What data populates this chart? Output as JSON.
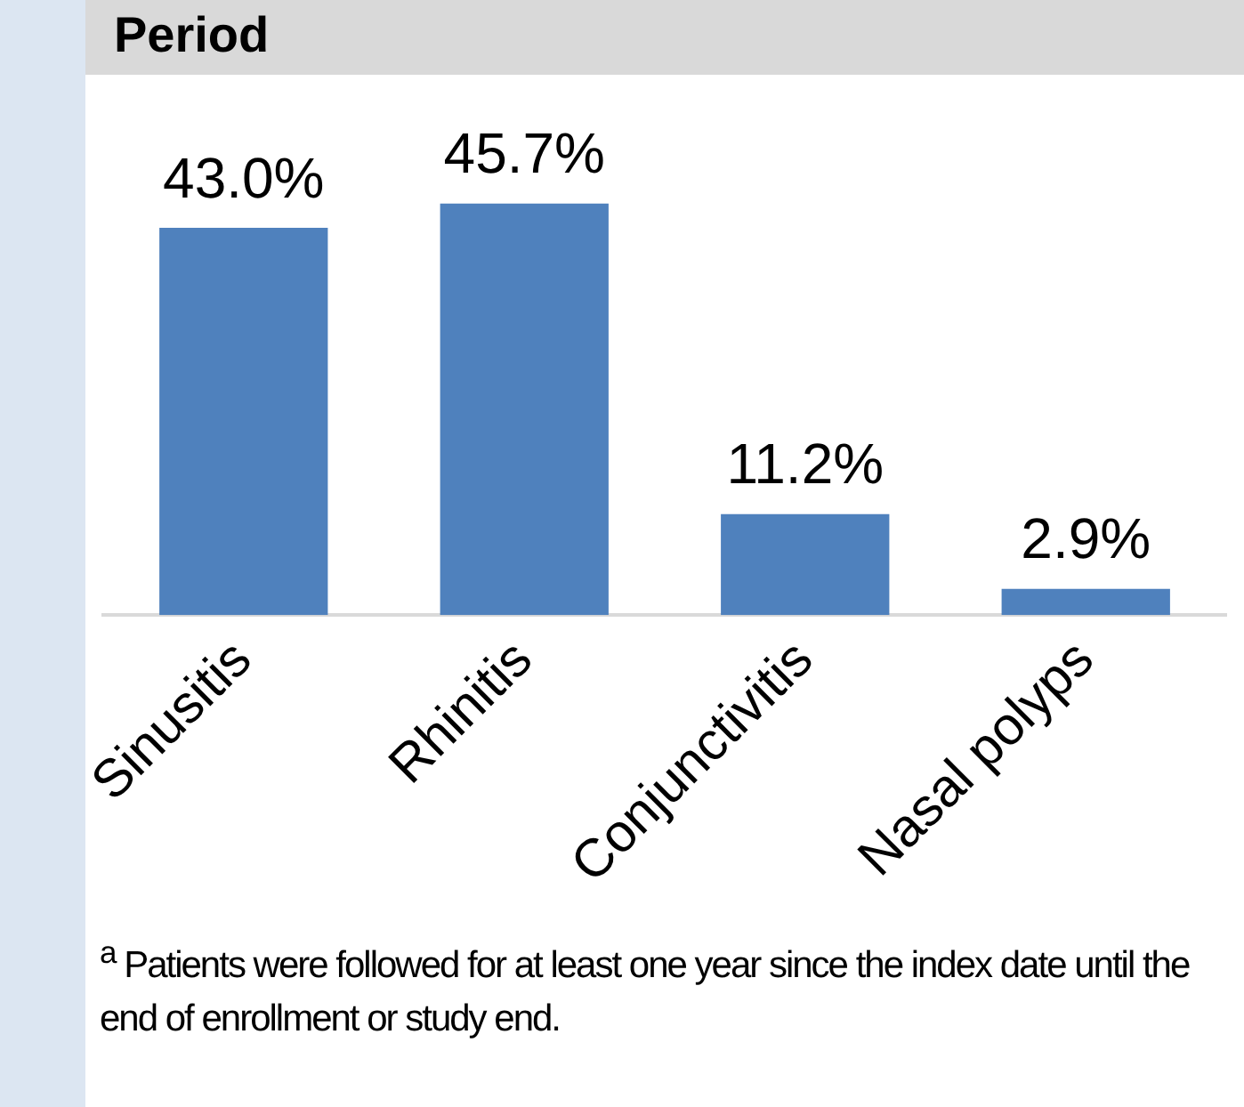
{
  "chart_data": {
    "type": "bar",
    "title": "Period",
    "categories": [
      "Sinusitis",
      "Rhinitis",
      "Conjunctivitis",
      "Nasal polyps"
    ],
    "values": [
      43.0,
      45.7,
      11.2,
      2.9
    ],
    "value_labels": [
      "43.0%",
      "45.7%",
      "11.2%",
      "2.9%"
    ],
    "color": "#4f81bd",
    "grid": false,
    "legend": false,
    "tick_labels": "x",
    "annotations": [
      "$^{a}$ Patients were followed for at least one year since the index date until the end of enrollment or study end."
    ]
  }
}
